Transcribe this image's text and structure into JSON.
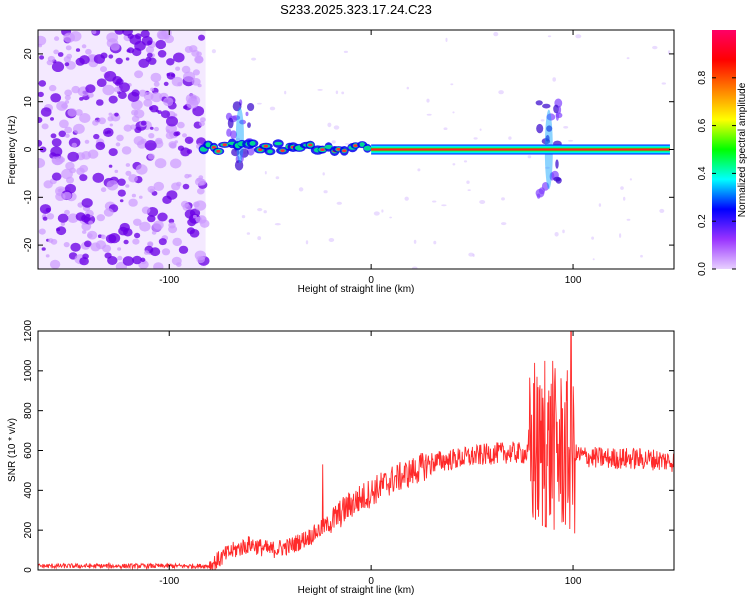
{
  "figure": {
    "title": "S233.2025.323.17.24.C23"
  },
  "colors": {
    "line": "#ff2a2a",
    "ridge": "#ff2020",
    "speckle_dark": "#6a00e6",
    "speckle_light": "#cc99ff",
    "axis": "#000000"
  },
  "chart_data": [
    {
      "type": "heatmap",
      "name": "spectrogram",
      "xlabel": "Height of straight line (km)",
      "ylabel": "Frequency (Hz)",
      "xlim": [
        -165,
        150
      ],
      "ylim": [
        -25,
        25
      ],
      "xticks": [
        -100,
        0,
        100
      ],
      "xtick_labels": [
        "-100",
        "0",
        "100"
      ],
      "yticks": [
        -20,
        -10,
        0,
        10,
        20
      ],
      "ytick_labels": [
        "-20",
        "-10",
        "0",
        "10",
        "20"
      ],
      "noise_region_x": [
        -165,
        -82
      ],
      "ridge_segments": [
        {
          "x0": -85,
          "x1": 0,
          "freq": 0.5,
          "style": "patchy"
        },
        {
          "x0": 0,
          "x1": 148,
          "freq": 0,
          "style": "continuous"
        }
      ],
      "disturbances": [
        {
          "x": -65,
          "freq_range": [
            -4,
            10
          ]
        },
        {
          "x": 88,
          "freq_range": [
            -10,
            10
          ]
        }
      ],
      "colorbar": {
        "label": "Normalized spectral amplitude",
        "range": [
          0.0,
          1.0
        ],
        "ticks": [
          0.0,
          0.2,
          0.4,
          0.6,
          0.8
        ],
        "tick_labels": [
          "0.0",
          "0.2",
          "0.4",
          "0.6",
          "0.8"
        ],
        "colormap": [
          "#e8d0ff",
          "#9933ff",
          "#0000ff",
          "#00ffff",
          "#00ff00",
          "#ffff00",
          "#ff8000",
          "#ff0000",
          "#ff0066"
        ]
      }
    },
    {
      "type": "line",
      "name": "snr",
      "xlabel": "Height of straight line (km)",
      "ylabel": "SNR (10 * v/v)",
      "xlim": [
        -165,
        150
      ],
      "ylim": [
        0,
        1200
      ],
      "xticks": [
        -100,
        0,
        100
      ],
      "xtick_labels": [
        "-100",
        "0",
        "100"
      ],
      "yticks": [
        0,
        200,
        400,
        600,
        800,
        1000,
        1200
      ],
      "ytick_labels": [
        "0",
        "200",
        "400",
        "600",
        "800",
        "1000",
        "1200"
      ],
      "trend": {
        "x": [
          -165,
          -80,
          -70,
          -60,
          -50,
          -40,
          -30,
          -20,
          -10,
          0,
          10,
          20,
          30,
          40,
          50,
          60,
          70,
          80,
          90,
          100,
          110,
          120,
          130,
          140,
          150
        ],
        "y": [
          20,
          20,
          90,
          130,
          100,
          120,
          170,
          240,
          330,
          390,
          450,
          490,
          540,
          555,
          570,
          585,
          590,
          580,
          600,
          580,
          565,
          560,
          560,
          555,
          545
        ]
      },
      "spikes": [
        {
          "x": -24,
          "y": 530
        },
        {
          "x": 81,
          "y": 1040
        },
        {
          "x": 86,
          "y": 1050
        },
        {
          "x": 90,
          "y": 1050
        },
        {
          "x": 99,
          "y": 1200
        }
      ]
    }
  ]
}
